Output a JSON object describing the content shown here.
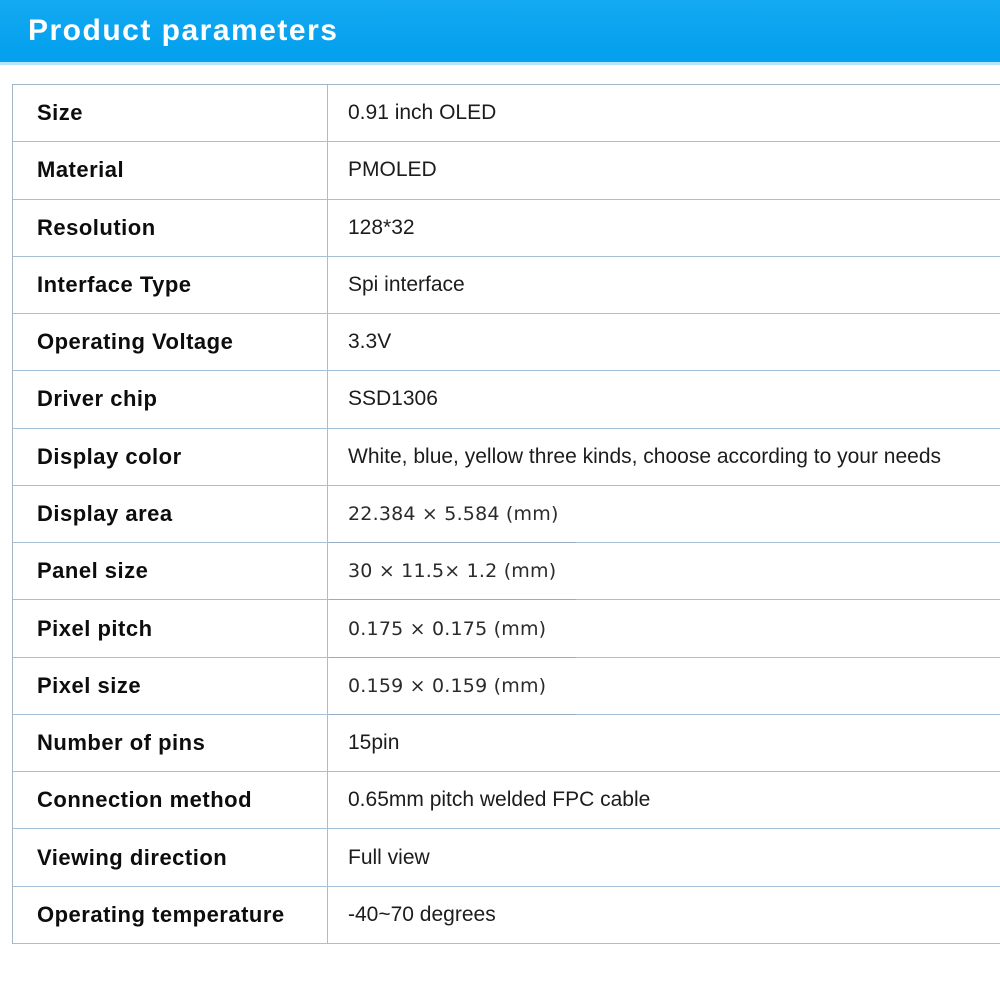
{
  "header": {
    "title": "Product parameters",
    "background_color": "#06a3f0",
    "text_color": "#ffffff"
  },
  "table": {
    "border_color_horizontal": "#a7c0da",
    "border_color_vertical": "#9cc0e6",
    "rows": [
      {
        "label": "Size",
        "value": "0.91 inch OLED"
      },
      {
        "label": "Material",
        "value": "PMOLED"
      },
      {
        "label": "Resolution",
        "value": "128*32"
      },
      {
        "label": "Interface Type",
        "value": "Spi interface"
      },
      {
        "label": "Operating Voltage",
        "value": "3.3V"
      },
      {
        "label": "Driver chip",
        "value": "SSD1306"
      },
      {
        "label": "Display color",
        "value": "White, blue, yellow three kinds, choose according to your needs"
      },
      {
        "label": "Display area",
        "value": "22.384 × 5.584 (mm)"
      },
      {
        "label": "Panel size",
        "value": "30 × 11.5× 1.2 (mm)"
      },
      {
        "label": "Pixel pitch",
        "value": "0.175 × 0.175 (mm)"
      },
      {
        "label": "Pixel size",
        "value": "0.159 × 0.159 (mm)"
      },
      {
        "label": "Number of pins",
        "value": "15pin"
      },
      {
        "label": "Connection method",
        "value": "0.65mm pitch welded FPC cable"
      },
      {
        "label": "Viewing direction",
        "value": "Full view"
      },
      {
        "label": "Operating temperature",
        "value": "-40~70 degrees"
      }
    ]
  }
}
